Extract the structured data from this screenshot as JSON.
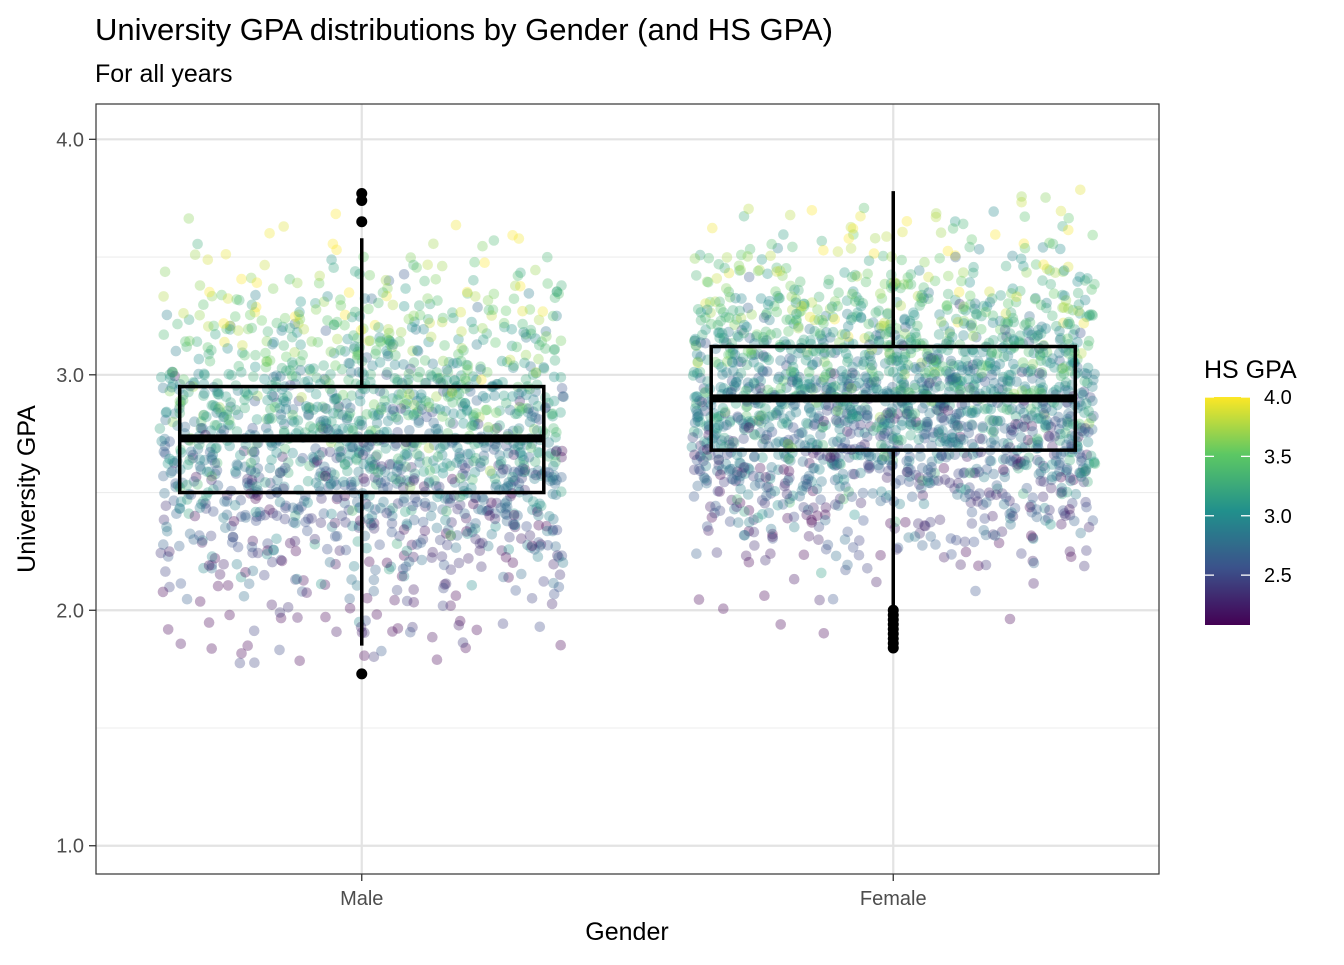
{
  "chart_data": {
    "type": "boxplot",
    "title": "University GPA distributions by Gender (and HS GPA)",
    "subtitle": "For all years",
    "xlabel": "Gender",
    "ylabel": "University GPA",
    "categories": [
      "Male",
      "Female"
    ],
    "ylim": [
      0.88,
      4.15
    ],
    "yticks": [
      1.0,
      2.0,
      3.0,
      4.0
    ],
    "ytick_labels": [
      "1.0",
      "2.0",
      "3.0",
      "4.0"
    ],
    "grid": true,
    "boxes": [
      {
        "category": "Male",
        "whisker_low": 1.85,
        "q1": 2.5,
        "median": 2.73,
        "q3": 2.95,
        "whisker_high": 3.58,
        "outliers": [
          1.73,
          3.65,
          3.74,
          3.77
        ],
        "jitter": {
          "n": 1600,
          "low": 1.72,
          "high": 3.77,
          "sd": 0.35
        }
      },
      {
        "category": "Female",
        "whisker_low": 2.02,
        "q1": 2.68,
        "median": 2.9,
        "q3": 3.12,
        "whisker_high": 3.78,
        "outliers": [
          1.84,
          1.86,
          1.88,
          1.9,
          1.92,
          1.94,
          1.96,
          1.98,
          2.0
        ],
        "jitter": {
          "n": 2000,
          "low": 1.83,
          "high": 3.79,
          "sd": 0.33
        }
      }
    ],
    "color_legend": {
      "title": "HS GPA",
      "range": [
        2.08,
        4.0
      ],
      "ticks": [
        2.5,
        3.0,
        3.5,
        4.0
      ],
      "tick_labels": [
        "2.5",
        "3.0",
        "3.5",
        "4.0"
      ],
      "palette": "viridis",
      "colors": [
        "#440154",
        "#3B528B",
        "#21908C",
        "#5DC863",
        "#FDE725"
      ],
      "placement": "right"
    }
  }
}
